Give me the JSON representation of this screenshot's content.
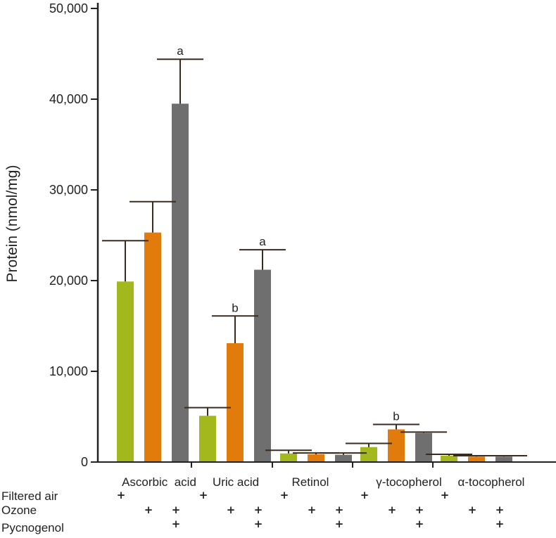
{
  "chart_data": {
    "type": "bar",
    "ylabel": "Protein (nmol/mg)",
    "ylim": [
      0,
      50000
    ],
    "yticks": [
      0,
      10000,
      20000,
      30000,
      40000,
      50000
    ],
    "ytick_labels": [
      "0",
      "10,000",
      "20,000",
      "30,000",
      "40,000",
      "50,000"
    ],
    "grid": false,
    "legend": "none",
    "categories": [
      "Ascorbic  acid",
      "Uric acid",
      "Retinol",
      "γ-tocopherol",
      "α-tocopherol"
    ],
    "series": [
      {
        "color": "#a3b81c",
        "values": [
          19900,
          5100,
          950,
          1650,
          700
        ],
        "errors": [
          4500,
          900,
          350,
          400,
          150
        ]
      },
      {
        "color": "#e07b0c",
        "values": [
          25300,
          13100,
          850,
          3600,
          600
        ],
        "errors": [
          3400,
          3000,
          150,
          550,
          100
        ]
      },
      {
        "color": "#6f6f6f",
        "values": [
          39500,
          21200,
          800,
          3200,
          600
        ],
        "errors": [
          4900,
          2200,
          200,
          100,
          100
        ]
      }
    ],
    "annotations": [
      {
        "category": 0,
        "series": 2,
        "text": "a"
      },
      {
        "category": 1,
        "series": 1,
        "text": "b"
      },
      {
        "category": 1,
        "series": 2,
        "text": "a"
      },
      {
        "category": 3,
        "series": 1,
        "text": "b"
      }
    ],
    "conditions": [
      {
        "label": "Filtered air",
        "marks": [
          [
            true,
            false,
            false
          ],
          [
            true,
            false,
            false
          ],
          [
            true,
            false,
            false
          ],
          [
            true,
            false,
            false
          ],
          [
            true,
            false,
            false
          ]
        ]
      },
      {
        "label": "Ozone",
        "marks": [
          [
            false,
            true,
            true
          ],
          [
            false,
            true,
            true
          ],
          [
            false,
            true,
            true
          ],
          [
            false,
            true,
            true
          ],
          [
            false,
            true,
            true
          ]
        ]
      },
      {
        "label": "Pycnogenol",
        "marks": [
          [
            false,
            false,
            true
          ],
          [
            false,
            false,
            true
          ],
          [
            false,
            false,
            true
          ],
          [
            false,
            false,
            true
          ],
          [
            false,
            false,
            true
          ]
        ]
      }
    ],
    "plus_symbol": "+"
  }
}
